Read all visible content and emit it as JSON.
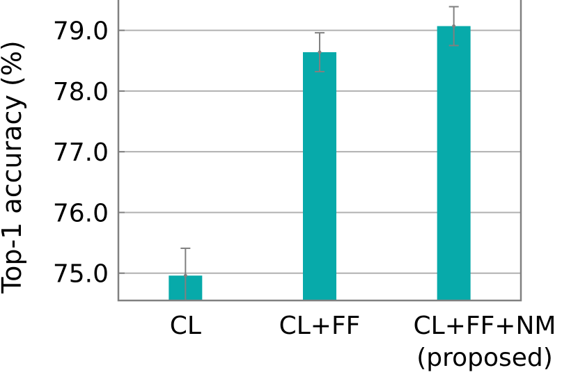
{
  "chart_data": {
    "type": "bar",
    "title": "",
    "xlabel": "",
    "ylabel": "Top-1 accuracy (%)",
    "ylim": [
      74.55,
      79.5
    ],
    "yticks": [
      "75.0",
      "76.0",
      "77.0",
      "78.0",
      "79.0"
    ],
    "grid": "horizontal",
    "categories": [
      [
        "CL"
      ],
      [
        "CL+FF"
      ],
      [
        "CL+FF+NM",
        "(proposed)"
      ]
    ],
    "values": [
      74.96,
      78.64,
      79.07
    ],
    "error": [
      0.45,
      0.32,
      0.32
    ],
    "bar_color": "#07aaaa",
    "errorbar_color": "#808080"
  }
}
